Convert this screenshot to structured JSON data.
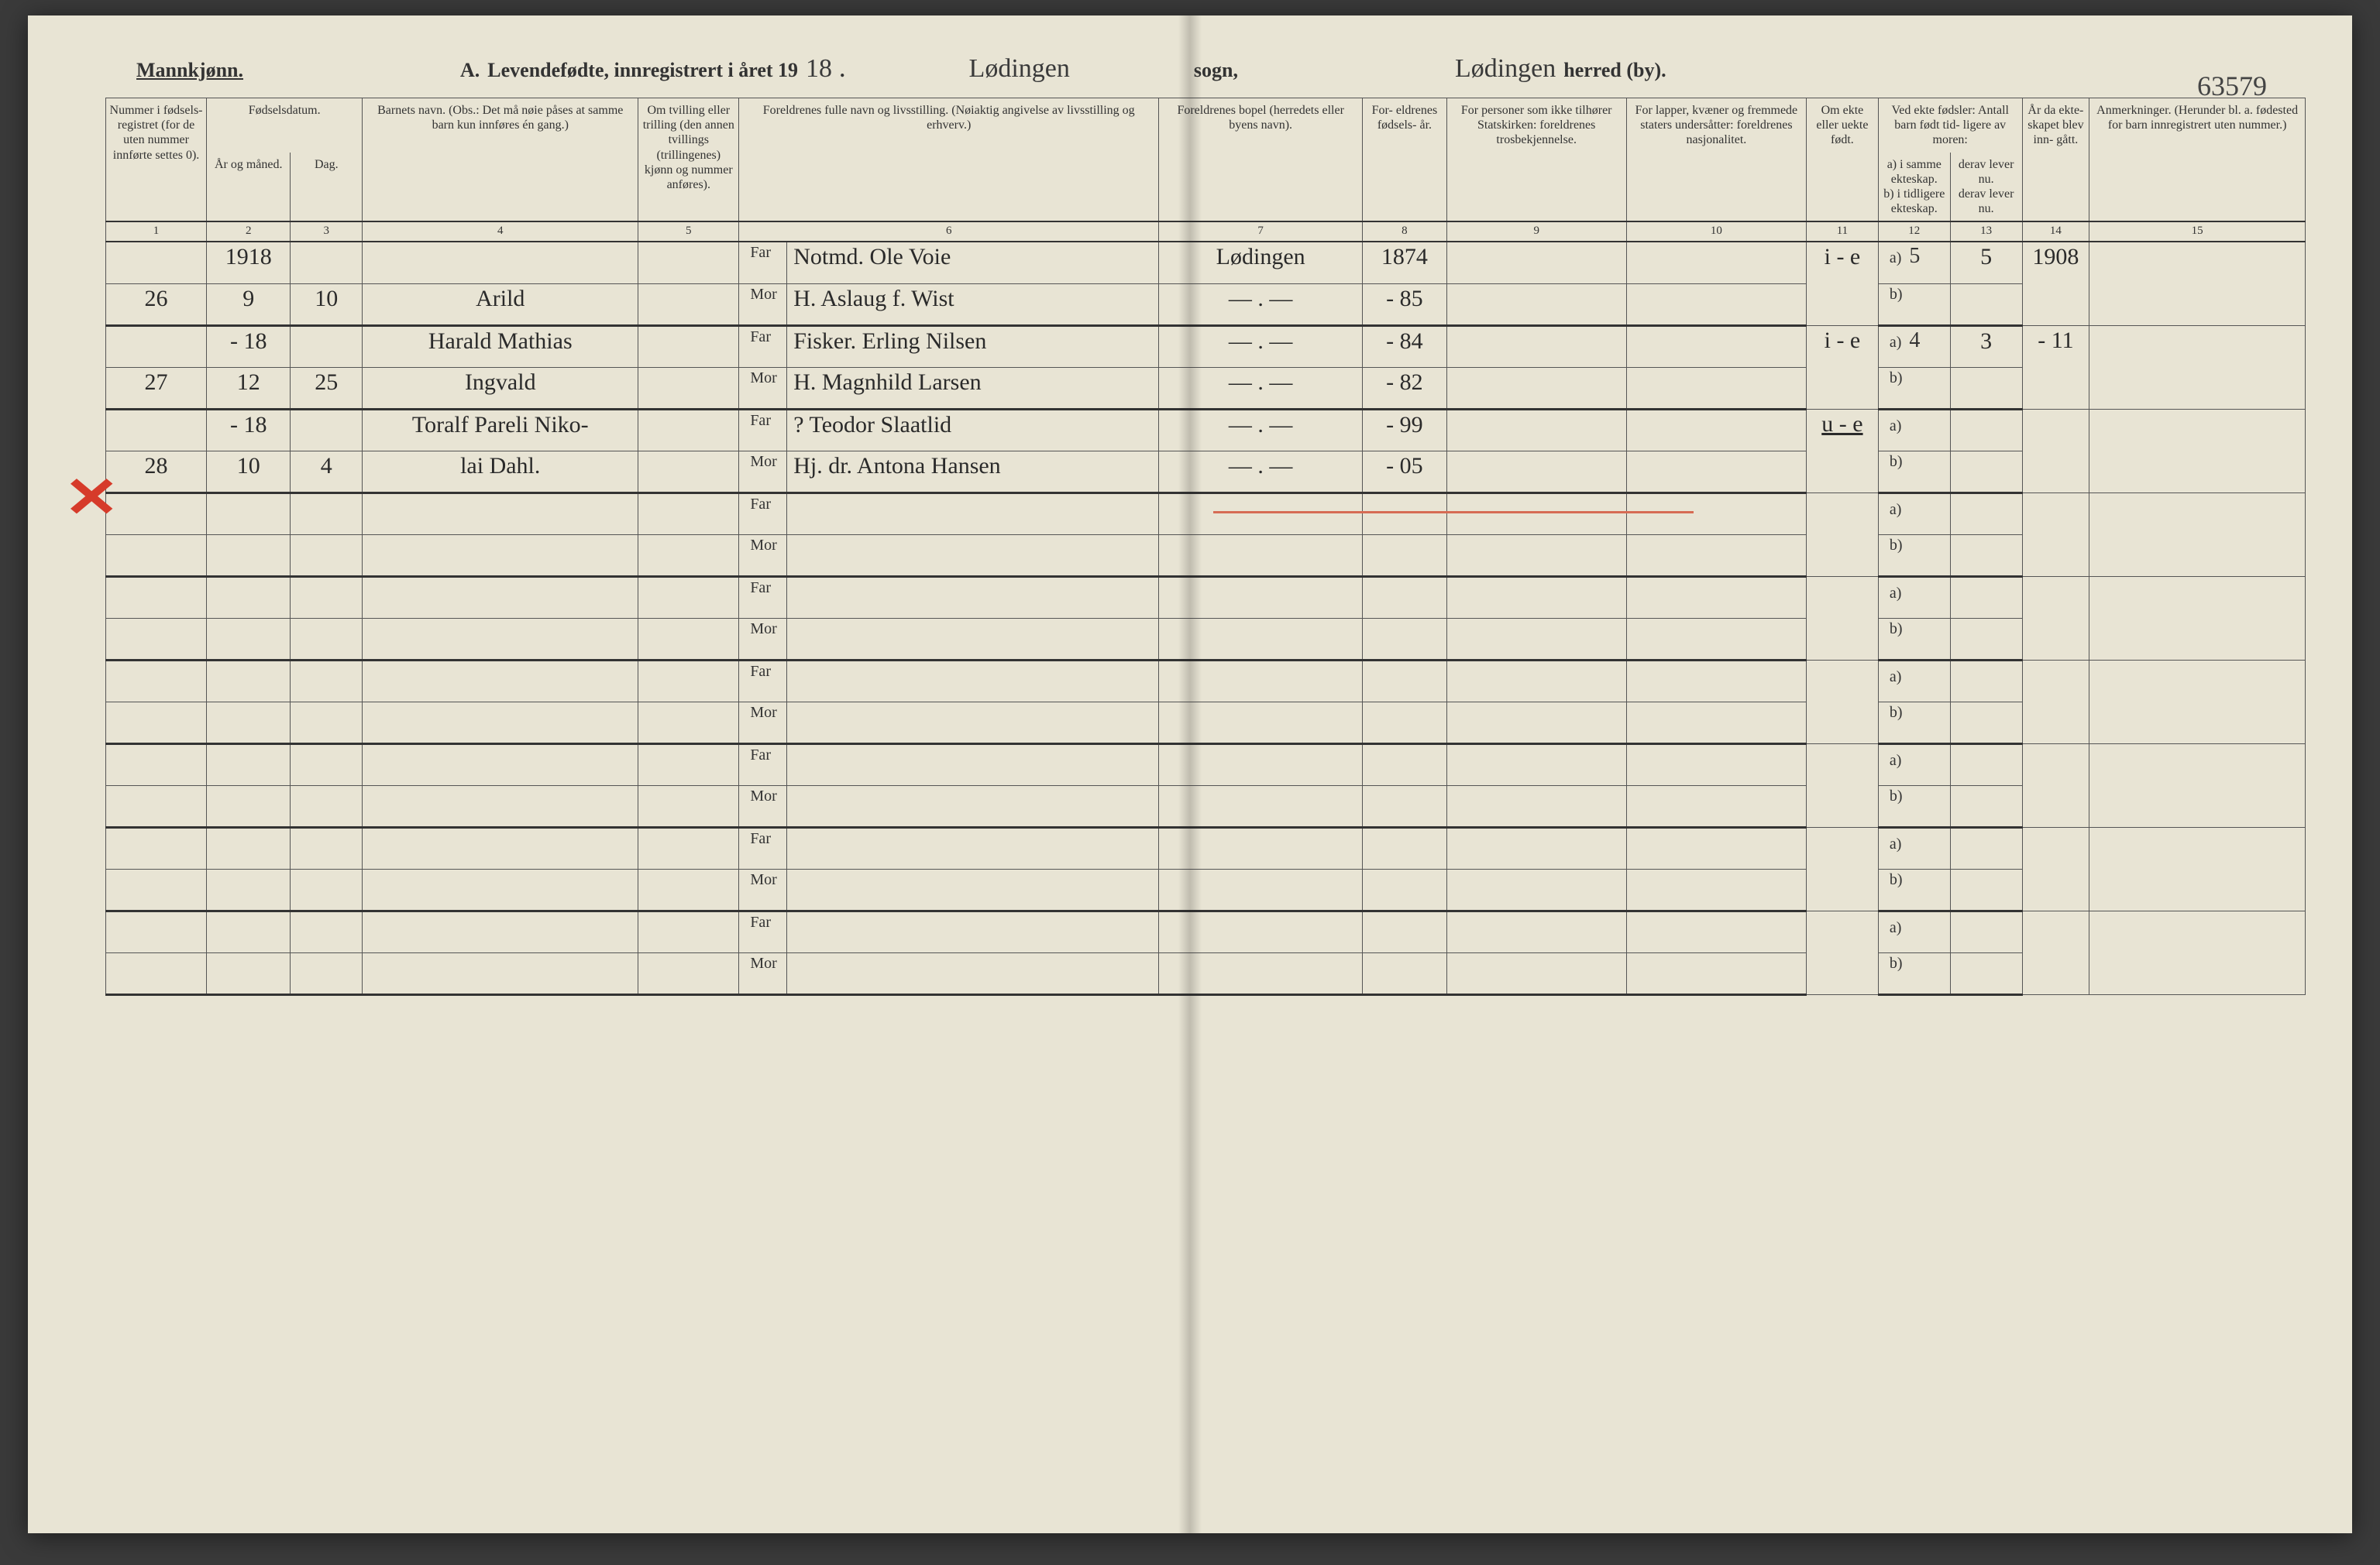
{
  "colors": {
    "page_bg": "#e8e4d4",
    "ink": "#333333",
    "handwriting": "#2a2a2a",
    "red_mark": "#d63b2a",
    "red_rule": "#d66b54",
    "border": "#555555"
  },
  "header": {
    "gender_heading": "Mannkjønn.",
    "section_letter": "A.",
    "title_prefix": "Levendefødte, innregistrert i året 19",
    "year_suffix_hw": "18",
    "period": ".",
    "parish_hw": "Lødingen",
    "parish_label": "sogn,",
    "district_hw": "Lødingen",
    "district_label": "herred (by).",
    "catalog_number_hw": "63579"
  },
  "columns": {
    "c1": "Nummer i fødsels- registret (for de uten nummer innførte settes 0).",
    "c2_group": "Fødselsdatum.",
    "c2": "År og måned.",
    "c3": "Dag.",
    "c4": "Barnets navn.\n(Obs.: Det må nøie påses at samme barn kun innføres én gang.)",
    "c5": "Om tvilling eller trilling (den annen tvillings (trillingenes) kjønn og nummer anføres).",
    "c6": "Foreldrenes fulle navn og livsstilling.\n(Nøiaktig angivelse av livsstilling og erhverv.)",
    "c7": "Foreldrenes bopel (herredets eller byens navn).",
    "c8": "For- eldrenes fødsels- år.",
    "c9": "For personer som ikke tilhører Statskirken: foreldrenes trosbekjennelse.",
    "c10": "For lapper, kvæner og fremmede staters undersåtter: foreldrenes nasjonalitet.",
    "c11": "Om ekte eller uekte født.",
    "c12_13_group": "Ved ekte fødsler: Antall barn født tid- ligere av moren:",
    "c12": "a) i samme ekteskap.",
    "c13": "derav lever nu.",
    "c12b": "b) i tidligere ekteskap.",
    "c13b": "derav lever nu.",
    "c14": "År da ekte- skapet blev inn- gått.",
    "c15": "Anmerkninger.\n(Herunder bl. a. fødested for barn innregistrert uten nummer.)",
    "nums": [
      "1",
      "2",
      "3",
      "4",
      "5",
      "6",
      "7",
      "8",
      "9",
      "10",
      "11",
      "12",
      "13",
      "14",
      "15"
    ],
    "far_label": "Far",
    "mor_label": "Mor",
    "a_label": "a)",
    "b_label": "b)"
  },
  "rows": [
    {
      "num": "26",
      "year_top": "1918",
      "month": "9",
      "day": "10",
      "name_top": "",
      "name_bot": "Arild",
      "far": "Notmd. Ole Voie",
      "mor": "H. Aslaug f. Wist",
      "bopel_far": "Lødingen",
      "bopel_mor": "— . —",
      "faar_far": "1874",
      "faar_mor": "- 85",
      "ekte": "i - e",
      "c12a": "5",
      "c13a": "5",
      "c14": "1908"
    },
    {
      "num": "27",
      "year_top": "- 18",
      "month": "12",
      "day": "25",
      "name_top": "Harald Mathias",
      "name_bot": "Ingvald",
      "far": "Fisker. Erling Nilsen",
      "mor": "H. Magnhild Larsen",
      "bopel_far": "— . —",
      "bopel_mor": "— . —",
      "faar_far": "- 84",
      "faar_mor": "- 82",
      "ekte": "i - e",
      "c12a": "4",
      "c13a": "3",
      "c14": "- 11"
    },
    {
      "num": "28",
      "year_top": "- 18",
      "month": "10",
      "day": "4",
      "name_top": "Toralf Pareli Niko-",
      "name_bot": "lai Dahl.",
      "far": "?  Teodor Slaatlid",
      "mor": "Hj. dr. Antona Hansen",
      "bopel_far": "— . —",
      "bopel_mor": "— . —",
      "faar_far": "- 99",
      "faar_mor": "- 05",
      "ekte": "u - e",
      "ekte_underline": true,
      "c12a": "",
      "c13a": "",
      "c14": ""
    }
  ],
  "empty_rows": 6
}
